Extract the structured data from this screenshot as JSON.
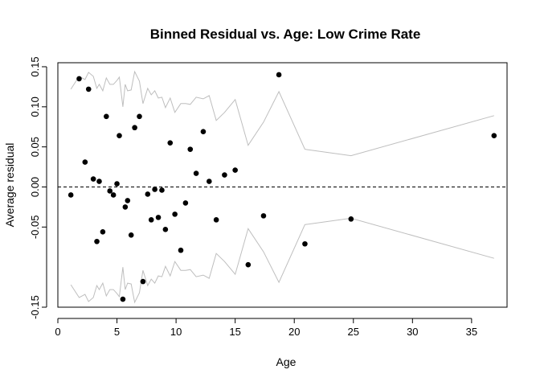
{
  "chart_data": {
    "type": "scatter",
    "title": "Binned Residual vs. Age: Low Crime Rate",
    "xlabel": "Age",
    "ylabel": "Average residual",
    "xlim": [
      0,
      38
    ],
    "ylim": [
      -0.15,
      0.155
    ],
    "xticks": [
      0,
      5,
      10,
      15,
      20,
      25,
      30,
      35
    ],
    "xtick_labels": [
      "0",
      "5",
      "10",
      "15",
      "20",
      "25",
      "30",
      "35"
    ],
    "yticks": [
      -0.15,
      -0.05,
      0.0,
      0.05,
      0.1,
      0.15
    ],
    "ytick_labels": [
      "-0.15",
      "-0.05",
      "0.00",
      "0.05",
      "0.10",
      "0.15"
    ],
    "reference_line": {
      "y": 0,
      "style": "dashed"
    },
    "points": [
      {
        "x": 1.1,
        "y": -0.01
      },
      {
        "x": 1.8,
        "y": 0.135
      },
      {
        "x": 2.3,
        "y": 0.031
      },
      {
        "x": 2.6,
        "y": 0.122
      },
      {
        "x": 3.0,
        "y": 0.01
      },
      {
        "x": 3.3,
        "y": -0.068
      },
      {
        "x": 3.5,
        "y": 0.007
      },
      {
        "x": 3.8,
        "y": -0.056
      },
      {
        "x": 4.1,
        "y": 0.088
      },
      {
        "x": 4.4,
        "y": -0.005
      },
      {
        "x": 4.7,
        "y": -0.01
      },
      {
        "x": 5.0,
        "y": 0.004
      },
      {
        "x": 5.2,
        "y": 0.064
      },
      {
        "x": 5.5,
        "y": -0.14
      },
      {
        "x": 5.7,
        "y": -0.025
      },
      {
        "x": 5.9,
        "y": -0.017
      },
      {
        "x": 6.2,
        "y": -0.06
      },
      {
        "x": 6.5,
        "y": 0.074
      },
      {
        "x": 6.9,
        "y": 0.088
      },
      {
        "x": 7.2,
        "y": -0.118
      },
      {
        "x": 7.6,
        "y": -0.009
      },
      {
        "x": 7.9,
        "y": -0.041
      },
      {
        "x": 8.2,
        "y": -0.003
      },
      {
        "x": 8.5,
        "y": -0.038
      },
      {
        "x": 8.8,
        "y": -0.004
      },
      {
        "x": 9.1,
        "y": -0.053
      },
      {
        "x": 9.5,
        "y": 0.055
      },
      {
        "x": 9.9,
        "y": -0.034
      },
      {
        "x": 10.4,
        "y": -0.079
      },
      {
        "x": 10.8,
        "y": -0.02
      },
      {
        "x": 11.2,
        "y": 0.047
      },
      {
        "x": 11.7,
        "y": 0.017
      },
      {
        "x": 12.3,
        "y": 0.069
      },
      {
        "x": 12.8,
        "y": 0.007
      },
      {
        "x": 13.4,
        "y": -0.041
      },
      {
        "x": 14.1,
        "y": 0.015
      },
      {
        "x": 15.0,
        "y": 0.021
      },
      {
        "x": 16.1,
        "y": -0.097
      },
      {
        "x": 17.4,
        "y": -0.036
      },
      {
        "x": 18.7,
        "y": 0.14
      },
      {
        "x": 20.9,
        "y": -0.071
      },
      {
        "x": 24.8,
        "y": -0.04
      },
      {
        "x": 36.9,
        "y": 0.064
      }
    ],
    "bound": {
      "style": "grey line, mirrored about 0 (upper and lower)",
      "x": [
        1.1,
        1.8,
        2.3,
        2.6,
        3.0,
        3.3,
        3.5,
        3.8,
        4.1,
        4.4,
        4.7,
        5.0,
        5.2,
        5.5,
        5.7,
        5.9,
        6.2,
        6.5,
        6.9,
        7.2,
        7.6,
        7.9,
        8.2,
        8.5,
        8.8,
        9.1,
        9.5,
        9.9,
        10.4,
        10.8,
        11.2,
        11.7,
        12.3,
        12.8,
        13.4,
        14.1,
        15.0,
        16.1,
        17.4,
        18.7,
        20.9,
        24.8,
        36.9
      ],
      "y": [
        0.122,
        0.138,
        0.134,
        0.143,
        0.138,
        0.123,
        0.128,
        0.12,
        0.136,
        0.128,
        0.128,
        0.133,
        0.137,
        0.1,
        0.128,
        0.12,
        0.121,
        0.144,
        0.132,
        0.104,
        0.123,
        0.115,
        0.12,
        0.111,
        0.112,
        0.099,
        0.111,
        0.093,
        0.104,
        0.104,
        0.103,
        0.112,
        0.11,
        0.114,
        0.083,
        0.093,
        0.109,
        0.052,
        0.081,
        0.119,
        0.047,
        0.039,
        0.089
      ]
    }
  }
}
